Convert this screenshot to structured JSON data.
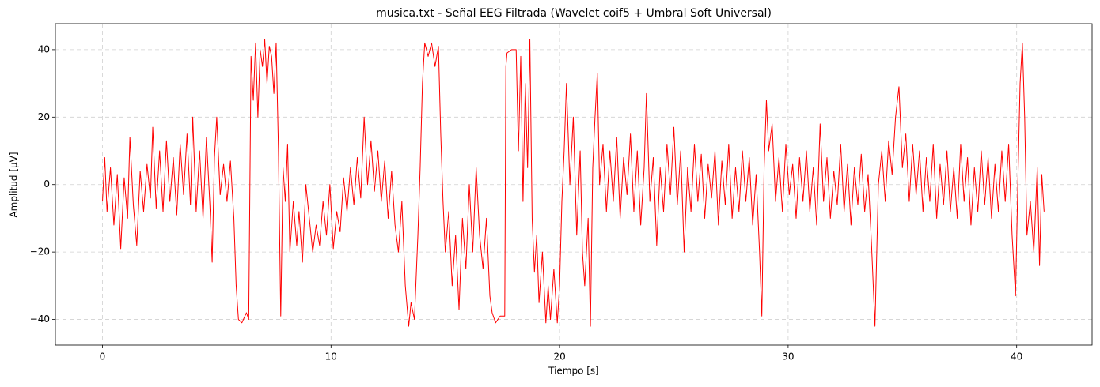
{
  "chart_data": {
    "type": "line",
    "title": "musica.txt - Señal EEG Filtrada (Wavelet coif5 + Umbral Soft Universal)",
    "x_label": "Tiempo [s]",
    "y_label": "Amplitud [µV]",
    "xlim": [
      -2.06,
      43.3
    ],
    "ylim": [
      -47.6,
      47.7
    ],
    "xticks": [
      0,
      10,
      20,
      30,
      40
    ],
    "yticks": [
      {
        "value": -40,
        "label": "−40"
      },
      {
        "value": -20,
        "label": "−20"
      },
      0,
      20,
      40
    ],
    "grid": true,
    "x": [
      0,
      0.1,
      0.2,
      0.35,
      0.5,
      0.65,
      0.8,
      0.95,
      1.1,
      1.2,
      1.35,
      1.5,
      1.65,
      1.8,
      1.95,
      2.1,
      2.2,
      2.35,
      2.5,
      2.65,
      2.8,
      2.95,
      3.1,
      3.25,
      3.4,
      3.55,
      3.7,
      3.85,
      3.95,
      4.1,
      4.25,
      4.4,
      4.55,
      4.7,
      4.8,
      4.9,
      5.0,
      5.15,
      5.3,
      5.45,
      5.6,
      5.75,
      5.85,
      5.95,
      6.1,
      6.3,
      6.4,
      6.5,
      6.6,
      6.7,
      6.8,
      6.9,
      7.0,
      7.1,
      7.2,
      7.3,
      7.4,
      7.5,
      7.6,
      7.7,
      7.8,
      7.9,
      8.0,
      8.1,
      8.2,
      8.35,
      8.5,
      8.6,
      8.75,
      8.9,
      9.05,
      9.2,
      9.35,
      9.5,
      9.65,
      9.8,
      9.95,
      10.1,
      10.25,
      10.4,
      10.55,
      10.7,
      10.85,
      11.0,
      11.15,
      11.3,
      11.45,
      11.6,
      11.75,
      11.9,
      12.05,
      12.2,
      12.35,
      12.5,
      12.65,
      12.8,
      12.95,
      13.1,
      13.25,
      13.4,
      13.5,
      13.65,
      13.8,
      13.9,
      14.0,
      14.1,
      14.25,
      14.4,
      14.55,
      14.7,
      14.8,
      14.9,
      15.0,
      15.15,
      15.3,
      15.45,
      15.6,
      15.75,
      15.9,
      16.05,
      16.2,
      16.35,
      16.5,
      16.65,
      16.8,
      16.95,
      17.05,
      17.2,
      17.4,
      17.6,
      17.65,
      17.7,
      17.9,
      18.1,
      18.2,
      18.3,
      18.4,
      18.5,
      18.6,
      18.7,
      18.8,
      18.9,
      19.0,
      19.1,
      19.25,
      19.4,
      19.5,
      19.6,
      19.75,
      19.9,
      20.0,
      20.1,
      20.2,
      20.3,
      20.45,
      20.6,
      20.75,
      20.9,
      21.0,
      21.1,
      21.25,
      21.35,
      21.45,
      21.55,
      21.65,
      21.75,
      21.9,
      22.05,
      22.2,
      22.35,
      22.5,
      22.65,
      22.8,
      22.95,
      23.1,
      23.25,
      23.4,
      23.55,
      23.7,
      23.8,
      23.95,
      24.1,
      24.25,
      24.4,
      24.55,
      24.7,
      24.85,
      25.0,
      25.15,
      25.3,
      25.45,
      25.6,
      25.75,
      25.9,
      26.05,
      26.2,
      26.35,
      26.5,
      26.65,
      26.8,
      26.95,
      27.1,
      27.25,
      27.4,
      27.55,
      27.7,
      27.85,
      28.0,
      28.15,
      28.3,
      28.45,
      28.6,
      28.75,
      28.85,
      28.95,
      29.05,
      29.15,
      29.3,
      29.45,
      29.6,
      29.75,
      29.9,
      30.05,
      30.2,
      30.35,
      30.5,
      30.65,
      30.8,
      30.95,
      31.1,
      31.25,
      31.4,
      31.55,
      31.7,
      31.85,
      32.0,
      32.15,
      32.3,
      32.45,
      32.6,
      32.75,
      32.9,
      33.05,
      33.2,
      33.35,
      33.5,
      33.65,
      33.8,
      33.95,
      34.1,
      34.25,
      34.4,
      34.55,
      34.7,
      34.85,
      35.0,
      35.15,
      35.3,
      35.45,
      35.6,
      35.75,
      35.9,
      36.05,
      36.2,
      36.35,
      36.5,
      36.65,
      36.8,
      36.95,
      37.1,
      37.25,
      37.4,
      37.55,
      37.7,
      37.85,
      38.0,
      38.15,
      38.3,
      38.45,
      38.6,
      38.75,
      38.9,
      39.05,
      39.2,
      39.35,
      39.5,
      39.65,
      39.8,
      39.95,
      40.05,
      40.15,
      40.25,
      40.35,
      40.45,
      40.6,
      40.75,
      40.9,
      41.0,
      41.1,
      41.2
    ],
    "series": [
      {
        "name": "EEG",
        "color": "#ff0000",
        "values": [
          -5,
          8,
          -8,
          5,
          -12,
          3,
          -19,
          2,
          -10,
          14,
          -6,
          -18,
          4,
          -8,
          6,
          -4,
          17,
          -7,
          10,
          -8,
          13,
          -5,
          8,
          -9,
          12,
          -3,
          15,
          -6,
          20,
          -8,
          10,
          -10,
          14,
          -6,
          -23,
          8,
          20,
          -3,
          6,
          -5,
          7,
          -10,
          -30,
          -40,
          -41,
          -38,
          -40,
          38,
          25,
          42,
          20,
          40,
          35,
          43,
          30,
          41,
          38,
          27,
          42,
          10,
          -39,
          5,
          -5,
          12,
          -20,
          -5,
          -18,
          -8,
          -23,
          0,
          -10,
          -20,
          -12,
          -18,
          -5,
          -15,
          0,
          -19,
          -8,
          -14,
          2,
          -8,
          5,
          -6,
          8,
          -4,
          20,
          0,
          13,
          -2,
          10,
          -5,
          7,
          -10,
          4,
          -12,
          -20,
          -5,
          -30,
          -42,
          -35,
          -40,
          -15,
          5,
          30,
          42,
          38,
          42,
          35,
          41,
          15,
          -5,
          -20,
          -8,
          -30,
          -15,
          -37,
          -10,
          -25,
          0,
          -20,
          5,
          -15,
          -25,
          -10,
          -33,
          -38,
          -41,
          -39,
          -39,
          35,
          39,
          40,
          40,
          10,
          38,
          -5,
          30,
          5,
          43,
          -10,
          -26,
          -15,
          -35,
          -20,
          -41,
          -30,
          -40,
          -25,
          -41,
          -30,
          -5,
          10,
          30,
          0,
          20,
          -15,
          10,
          -20,
          -30,
          -10,
          -42,
          5,
          20,
          33,
          0,
          12,
          -8,
          10,
          -5,
          14,
          -10,
          8,
          -3,
          15,
          -8,
          10,
          -12,
          5,
          27,
          -5,
          8,
          -18,
          5,
          -8,
          12,
          -3,
          17,
          -6,
          10,
          -20,
          5,
          -8,
          12,
          -5,
          9,
          -10,
          6,
          -4,
          10,
          -12,
          7,
          -6,
          12,
          -10,
          5,
          -8,
          10,
          -5,
          8,
          -12,
          3,
          -20,
          -39,
          5,
          25,
          10,
          18,
          -5,
          8,
          -8,
          12,
          -3,
          6,
          -10,
          8,
          -5,
          10,
          -8,
          5,
          -12,
          18,
          -5,
          8,
          -10,
          4,
          -6,
          12,
          -8,
          6,
          -12,
          5,
          -6,
          9,
          -8,
          3,
          -18,
          -42,
          0,
          10,
          -5,
          13,
          3,
          20,
          29,
          5,
          15,
          -5,
          12,
          -3,
          10,
          -8,
          8,
          -5,
          12,
          -10,
          6,
          -6,
          10,
          -8,
          5,
          -10,
          12,
          -5,
          8,
          -12,
          5,
          -8,
          10,
          -6,
          8,
          -10,
          6,
          -8,
          10,
          -5,
          12,
          -15,
          -33,
          0,
          30,
          42,
          20,
          -15,
          -5,
          -20,
          5,
          -24,
          3,
          -8
        ]
      }
    ]
  }
}
